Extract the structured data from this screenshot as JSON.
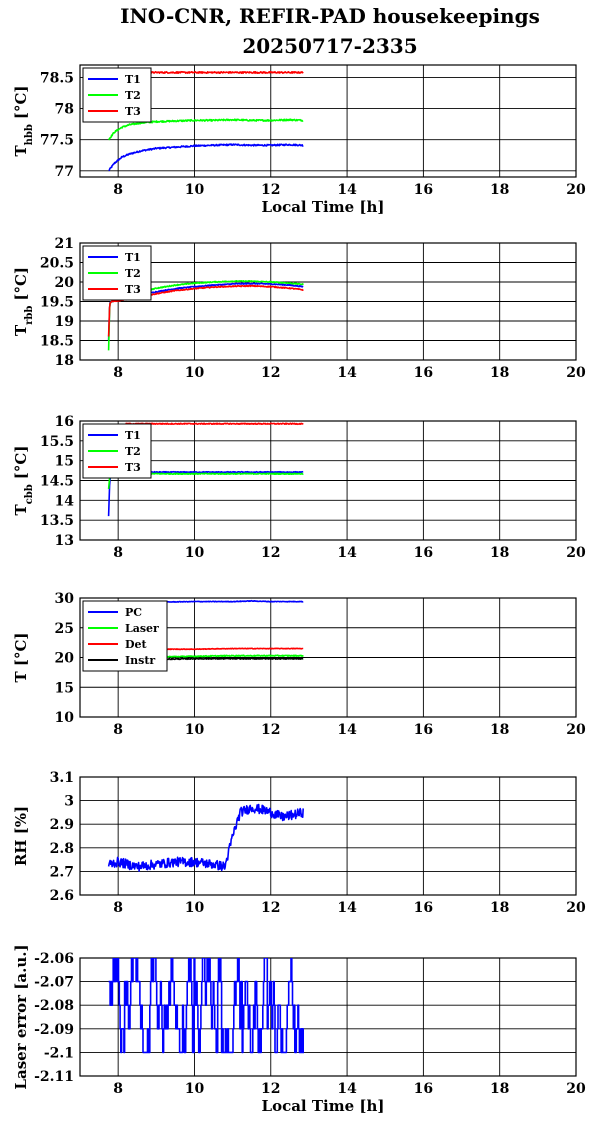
{
  "title_line1": "INO-CNR, REFIR-PAD housekeepings",
  "title_line2": "20250717-2335",
  "chart_data": [
    {
      "type": "line",
      "xlabel": "Local Time [h]",
      "ylabel": "T",
      "ylabel_sub": "hbb",
      "ylabel_unit": "[°C]",
      "xlim": [
        7,
        20
      ],
      "ylim": [
        76.9,
        78.7
      ],
      "xticks": [
        8,
        10,
        12,
        14,
        16,
        18,
        20
      ],
      "yticks": [
        77,
        77.5,
        78,
        78.5
      ],
      "ytick_labels": [
        "77",
        "77.5",
        "78",
        "78.5"
      ],
      "grid": true,
      "legend_position": "top-left",
      "series": [
        {
          "name": "T1",
          "color": "#0000ff",
          "x": [
            7.75,
            7.9,
            8.1,
            8.3,
            8.6,
            9.0,
            9.5,
            10.0,
            10.5,
            11.0,
            11.5,
            12.0,
            12.5,
            12.85
          ],
          "y": [
            77.0,
            77.12,
            77.22,
            77.27,
            77.32,
            77.36,
            77.38,
            77.4,
            77.41,
            77.42,
            77.41,
            77.41,
            77.42,
            77.41
          ],
          "noise": 0.012
        },
        {
          "name": "T2",
          "color": "#00ff00",
          "x": [
            7.75,
            7.9,
            8.1,
            8.3,
            8.6,
            9.0,
            9.5,
            10.0,
            10.5,
            11.0,
            11.5,
            12.0,
            12.5,
            12.85
          ],
          "y": [
            77.5,
            77.62,
            77.7,
            77.74,
            77.77,
            77.79,
            77.8,
            77.81,
            77.81,
            77.82,
            77.81,
            77.81,
            77.82,
            77.81
          ],
          "noise": 0.012
        },
        {
          "name": "T3",
          "color": "#ff0000",
          "x": [
            8.1,
            9.0,
            10.0,
            11.0,
            12.0,
            12.85
          ],
          "y": [
            78.57,
            78.58,
            78.58,
            78.58,
            78.58,
            78.58
          ],
          "noise": 0.012
        }
      ]
    },
    {
      "type": "line",
      "xlabel": "",
      "ylabel": "T",
      "ylabel_sub": "rbb",
      "ylabel_unit": "[°C]",
      "xlim": [
        7,
        20
      ],
      "ylim": [
        18,
        21
      ],
      "xticks": [
        8,
        10,
        12,
        14,
        16,
        18,
        20
      ],
      "yticks": [
        18,
        18.5,
        19,
        19.5,
        20,
        20.5,
        21
      ],
      "ytick_labels": [
        "18",
        "18.5",
        "19",
        "19.5",
        "20",
        "20.5",
        "21"
      ],
      "grid": true,
      "legend_position": "top-left",
      "series": [
        {
          "name": "T1",
          "color": "#0000ff",
          "x": [
            7.75,
            7.78,
            7.82,
            8.0,
            8.5,
            9.0,
            9.5,
            10.0,
            10.5,
            11.0,
            11.5,
            12.0,
            12.5,
            12.85
          ],
          "y": [
            18.5,
            19.45,
            19.5,
            19.55,
            19.65,
            19.75,
            19.83,
            19.88,
            19.92,
            19.95,
            19.96,
            19.95,
            19.92,
            19.88
          ],
          "noise": 0.012
        },
        {
          "name": "T2",
          "color": "#00ff00",
          "x": [
            7.75,
            7.78,
            7.82,
            8.0,
            8.5,
            9.0,
            9.5,
            10.0,
            10.5,
            11.0,
            11.5,
            12.0,
            12.5,
            12.85
          ],
          "y": [
            18.25,
            19.45,
            19.5,
            19.57,
            19.72,
            19.84,
            19.92,
            19.97,
            20.0,
            20.02,
            20.02,
            20.0,
            19.97,
            19.94
          ],
          "noise": 0.012
        },
        {
          "name": "T3",
          "color": "#ff0000",
          "x": [
            7.75,
            7.78,
            7.82,
            8.0,
            8.5,
            9.0,
            9.5,
            10.0,
            10.5,
            11.0,
            11.5,
            12.0,
            12.5,
            12.85
          ],
          "y": [
            18.6,
            19.45,
            19.5,
            19.52,
            19.6,
            19.7,
            19.78,
            19.83,
            19.87,
            19.89,
            19.9,
            19.88,
            19.84,
            19.8
          ],
          "noise": 0.012
        }
      ]
    },
    {
      "type": "line",
      "xlabel": "",
      "ylabel": "T",
      "ylabel_sub": "cbb",
      "ylabel_unit": "[°C]",
      "xlim": [
        7,
        20
      ],
      "ylim": [
        13,
        16
      ],
      "xticks": [
        8,
        10,
        12,
        14,
        16,
        18,
        20
      ],
      "yticks": [
        13,
        13.5,
        14,
        14.5,
        15,
        15.5,
        16
      ],
      "ytick_labels": [
        "13",
        "13.5",
        "14",
        "14.5",
        "15",
        "15.5",
        "16"
      ],
      "grid": true,
      "legend_position": "top-left",
      "series": [
        {
          "name": "T1",
          "color": "#0000ff",
          "x": [
            7.75,
            7.78,
            7.82,
            8.0,
            9.0,
            10.0,
            11.0,
            12.0,
            12.85
          ],
          "y": [
            13.6,
            14.5,
            14.68,
            14.7,
            14.71,
            14.71,
            14.71,
            14.71,
            14.71
          ],
          "noise": 0.012
        },
        {
          "name": "T2",
          "color": "#00ff00",
          "x": [
            7.75,
            7.78,
            7.82,
            8.0,
            9.0,
            10.0,
            11.0,
            12.0,
            12.85
          ],
          "y": [
            14.3,
            14.6,
            14.66,
            14.67,
            14.67,
            14.67,
            14.67,
            14.67,
            14.67
          ],
          "noise": 0.012
        },
        {
          "name": "T3",
          "color": "#ff0000",
          "x": [
            8.2,
            9.0,
            10.0,
            11.0,
            12.0,
            12.85
          ],
          "y": [
            15.93,
            15.93,
            15.93,
            15.93,
            15.93,
            15.93
          ],
          "noise": 0.012
        }
      ]
    },
    {
      "type": "line",
      "xlabel": "",
      "ylabel": "T [°C]",
      "ylabel_sub": "",
      "ylabel_unit": "",
      "xlim": [
        7,
        20
      ],
      "ylim": [
        10,
        30
      ],
      "xticks": [
        8,
        10,
        12,
        14,
        16,
        18,
        20
      ],
      "yticks": [
        10,
        15,
        20,
        25,
        30
      ],
      "ytick_labels": [
        "10",
        "15",
        "20",
        "25",
        "30"
      ],
      "grid": true,
      "legend_position": "top-left",
      "series": [
        {
          "name": "PC",
          "color": "#0000ff",
          "x": [
            7.75,
            9.0,
            10.0,
            11.0,
            11.5,
            12.0,
            12.85
          ],
          "y": [
            29.2,
            29.3,
            29.4,
            29.4,
            29.5,
            29.4,
            29.4
          ],
          "noise": 0.05
        },
        {
          "name": "Laser",
          "color": "#00ff00",
          "x": [
            7.75,
            9.0,
            10.0,
            11.0,
            12.0,
            12.85
          ],
          "y": [
            20.0,
            20.1,
            20.2,
            20.3,
            20.3,
            20.3
          ],
          "noise": 0.08
        },
        {
          "name": "Det",
          "color": "#ff0000",
          "x": [
            7.75,
            9.0,
            10.0,
            11.0,
            12.0,
            12.85
          ],
          "y": [
            21.4,
            21.4,
            21.4,
            21.5,
            21.5,
            21.5
          ],
          "noise": 0.05
        },
        {
          "name": "Instr",
          "color": "#000000",
          "x": [
            7.75,
            9.0,
            10.0,
            11.0,
            12.0,
            12.85
          ],
          "y": [
            19.6,
            19.7,
            19.8,
            19.8,
            19.8,
            19.8
          ],
          "noise": 0.08
        }
      ]
    },
    {
      "type": "line",
      "xlabel": "",
      "ylabel": "RH [%]",
      "ylabel_sub": "",
      "ylabel_unit": "",
      "xlim": [
        7,
        20
      ],
      "ylim": [
        2.6,
        3.1
      ],
      "xticks": [
        8,
        10,
        12,
        14,
        16,
        18,
        20
      ],
      "yticks": [
        2.6,
        2.7,
        2.8,
        2.9,
        3,
        3.1
      ],
      "ytick_labels": [
        "2.6",
        "2.7",
        "2.8",
        "2.9",
        "3",
        "3.1"
      ],
      "grid": true,
      "legend_position": "",
      "series": [
        {
          "color": "#0000ff",
          "x": [
            7.75,
            8.0,
            8.5,
            9.0,
            9.5,
            10.0,
            10.5,
            10.8,
            11.0,
            11.2,
            11.5,
            11.8,
            12.0,
            12.3,
            12.6,
            12.85
          ],
          "y": [
            2.73,
            2.74,
            2.72,
            2.73,
            2.74,
            2.74,
            2.73,
            2.72,
            2.85,
            2.95,
            2.97,
            2.96,
            2.95,
            2.93,
            2.94,
            2.95
          ],
          "noise": 0.02
        }
      ]
    },
    {
      "type": "line",
      "xlabel": "Local Time [h]",
      "ylabel": "Laser error [a.u.]",
      "ylabel_sub": "",
      "ylabel_unit": "",
      "xlim": [
        7,
        20
      ],
      "ylim": [
        -2.11,
        -2.06
      ],
      "xticks": [
        8,
        10,
        12,
        14,
        16,
        18,
        20
      ],
      "yticks": [
        -2.11,
        -2.1,
        -2.09,
        -2.08,
        -2.07,
        -2.06
      ],
      "ytick_labels": [
        "-2.11",
        "-2.1",
        "-2.09",
        "-2.08",
        "-2.07",
        "-2.06"
      ],
      "grid": true,
      "legend_position": "",
      "series": [
        {
          "color": "#0000ff",
          "x": [
            7.75,
            12.85
          ],
          "y": [
            -2.08,
            -2.08
          ],
          "levels": [
            -2.1,
            -2.09,
            -2.08,
            -2.07,
            -2.06
          ],
          "step": 0.02
        }
      ]
    }
  ]
}
